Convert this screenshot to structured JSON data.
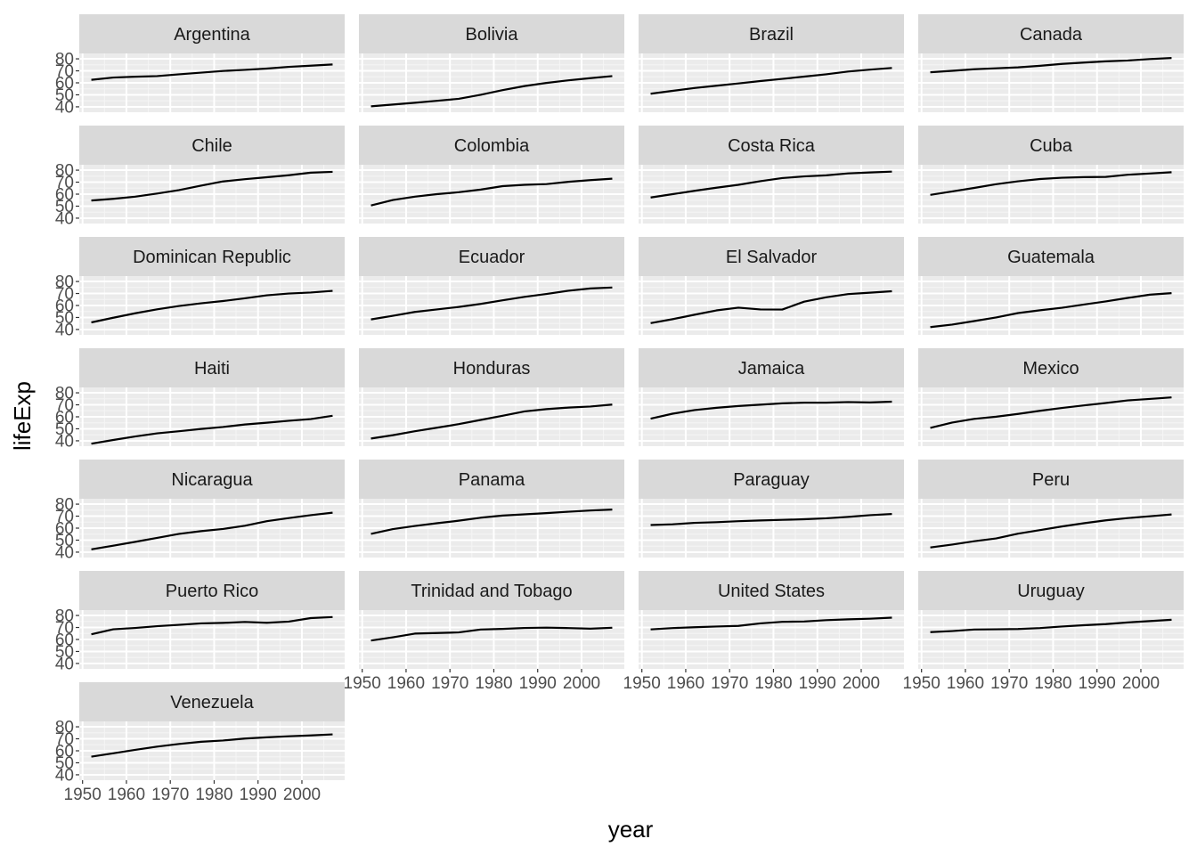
{
  "chart_data": {
    "type": "line",
    "layout": "facet_wrap",
    "facet_columns": 4,
    "xlabel": "year",
    "ylabel": "lifeExp",
    "xlim": [
      1949.25,
      2009.75
    ],
    "ylim": [
      35.5,
      84.5
    ],
    "x_ticks": [
      1950,
      1960,
      1970,
      1980,
      1990,
      2000
    ],
    "y_ticks": [
      40,
      50,
      60,
      70,
      80
    ],
    "x": [
      1952,
      1957,
      1962,
      1967,
      1972,
      1977,
      1982,
      1987,
      1992,
      1997,
      2002,
      2007
    ],
    "colors": {
      "panel": "#ebebeb",
      "strip": "#d9d9d9",
      "grid_major": "#ffffff",
      "grid_minor": "#f5f5f5",
      "line": "#000000",
      "tick": "#333333"
    },
    "series": [
      {
        "name": "Argentina",
        "values": [
          62.5,
          64.4,
          65.1,
          65.6,
          67.1,
          68.5,
          69.9,
          70.8,
          71.9,
          73.3,
          74.3,
          75.3
        ]
      },
      {
        "name": "Bolivia",
        "values": [
          40.4,
          41.9,
          43.4,
          45.0,
          46.7,
          50.0,
          53.9,
          57.3,
          59.9,
          62.1,
          63.9,
          65.6
        ]
      },
      {
        "name": "Brazil",
        "values": [
          50.9,
          53.3,
          55.7,
          57.6,
          59.5,
          61.5,
          63.3,
          65.2,
          67.1,
          69.4,
          71.0,
          72.4
        ]
      },
      {
        "name": "Canada",
        "values": [
          68.8,
          70.0,
          71.3,
          72.1,
          72.9,
          74.2,
          75.8,
          76.9,
          77.9,
          78.6,
          79.8,
          80.7
        ]
      },
      {
        "name": "Chile",
        "values": [
          54.7,
          56.1,
          57.9,
          60.5,
          63.4,
          67.1,
          70.6,
          72.5,
          74.1,
          75.8,
          77.9,
          78.6
        ]
      },
      {
        "name": "Colombia",
        "values": [
          50.6,
          55.1,
          57.9,
          60.0,
          61.6,
          63.8,
          66.7,
          67.8,
          68.4,
          70.3,
          71.7,
          72.9
        ]
      },
      {
        "name": "Costa Rica",
        "values": [
          57.2,
          60.0,
          62.8,
          65.4,
          67.8,
          70.8,
          73.4,
          74.8,
          75.7,
          77.3,
          78.1,
          78.8
        ]
      },
      {
        "name": "Cuba",
        "values": [
          59.4,
          62.3,
          65.2,
          68.3,
          70.7,
          72.6,
          73.7,
          74.2,
          74.4,
          76.2,
          77.2,
          78.3
        ]
      },
      {
        "name": "Dominican Republic",
        "values": [
          45.9,
          49.8,
          53.5,
          56.8,
          59.6,
          61.8,
          63.7,
          66.0,
          68.5,
          69.96,
          70.8,
          72.2
        ]
      },
      {
        "name": "Ecuador",
        "values": [
          48.4,
          51.4,
          54.6,
          56.7,
          58.8,
          61.3,
          64.3,
          67.2,
          69.6,
          72.3,
          74.2,
          74.99
        ]
      },
      {
        "name": "El Salvador",
        "values": [
          45.3,
          48.6,
          52.3,
          55.9,
          58.2,
          56.7,
          56.6,
          63.2,
          66.8,
          69.5,
          70.7,
          71.9
        ]
      },
      {
        "name": "Guatemala",
        "values": [
          42.0,
          44.1,
          47.0,
          50.0,
          53.7,
          56.0,
          58.1,
          60.8,
          63.4,
          66.3,
          68.98,
          70.3
        ]
      },
      {
        "name": "Haiti",
        "values": [
          37.6,
          40.7,
          43.6,
          46.2,
          48.0,
          49.9,
          51.5,
          53.6,
          55.1,
          56.7,
          58.1,
          60.9
        ]
      },
      {
        "name": "Honduras",
        "values": [
          41.9,
          44.7,
          48.0,
          50.9,
          53.9,
          57.4,
          60.9,
          64.5,
          66.4,
          67.7,
          68.6,
          70.2
        ]
      },
      {
        "name": "Jamaica",
        "values": [
          58.5,
          62.6,
          65.6,
          67.5,
          69.0,
          70.1,
          71.2,
          71.8,
          71.8,
          72.3,
          72.0,
          72.6
        ]
      },
      {
        "name": "Mexico",
        "values": [
          50.8,
          55.2,
          58.3,
          60.1,
          62.4,
          65.0,
          67.4,
          69.5,
          71.5,
          73.7,
          74.9,
          76.2
        ]
      },
      {
        "name": "Nicaragua",
        "values": [
          42.3,
          45.4,
          48.6,
          51.9,
          55.2,
          57.5,
          59.3,
          62.0,
          65.8,
          68.4,
          70.8,
          72.9
        ]
      },
      {
        "name": "Panama",
        "values": [
          55.2,
          59.2,
          61.8,
          64.1,
          66.2,
          68.7,
          70.5,
          71.5,
          72.5,
          73.7,
          74.7,
          75.5
        ]
      },
      {
        "name": "Paraguay",
        "values": [
          62.6,
          63.2,
          64.4,
          64.95,
          65.8,
          66.4,
          66.9,
          67.4,
          68.2,
          69.4,
          70.8,
          71.8
        ]
      },
      {
        "name": "Peru",
        "values": [
          43.9,
          46.3,
          49.1,
          51.4,
          55.4,
          58.4,
          61.4,
          64.1,
          66.5,
          68.4,
          69.9,
          71.4
        ]
      },
      {
        "name": "Puerto Rico",
        "values": [
          64.3,
          68.5,
          69.6,
          71.1,
          72.2,
          73.4,
          73.8,
          74.6,
          73.9,
          74.9,
          77.8,
          78.7
        ]
      },
      {
        "name": "Trinidad and Tobago",
        "values": [
          59.1,
          61.8,
          64.9,
          65.4,
          65.9,
          68.3,
          68.8,
          69.6,
          69.9,
          69.5,
          68.98,
          69.8
        ]
      },
      {
        "name": "United States",
        "values": [
          68.4,
          69.5,
          70.2,
          70.8,
          71.3,
          73.4,
          74.7,
          75.0,
          76.1,
          76.8,
          77.3,
          78.2
        ]
      },
      {
        "name": "Uruguay",
        "values": [
          66.1,
          67.0,
          68.3,
          68.5,
          68.7,
          69.5,
          70.8,
          71.9,
          72.8,
          74.2,
          75.3,
          76.4
        ]
      },
      {
        "name": "Venezuela",
        "values": [
          55.1,
          57.9,
          60.8,
          63.5,
          65.7,
          67.5,
          68.6,
          70.2,
          71.2,
          72.1,
          72.8,
          73.7
        ]
      }
    ]
  }
}
